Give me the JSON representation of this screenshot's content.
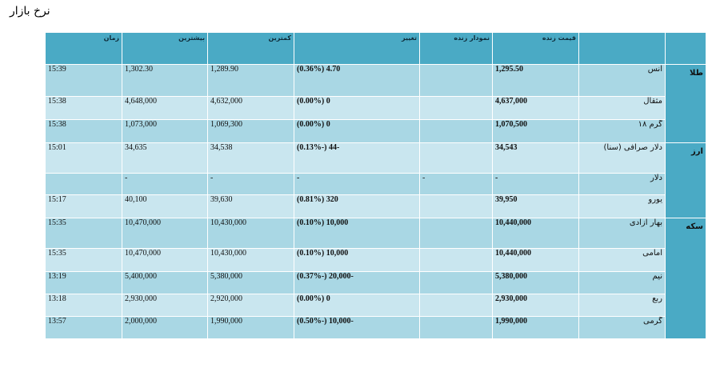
{
  "page_title": "نرخ بازار",
  "headers": {
    "category": "",
    "name": "",
    "live_price": "قیمت زنده",
    "live_chart": "نمودار زنده",
    "change": "تغییر",
    "low": "کمترین",
    "high": "بیشترین",
    "time": "زمان"
  },
  "categories": {
    "gold": "طلا",
    "currency": "ارز",
    "coin": "سکه"
  },
  "rows": [
    {
      "name": "انس",
      "price": "1,295.50",
      "chart": "",
      "change": "4.70 (0.36%)",
      "low": "1,289.90",
      "high": "1,302.30",
      "time": "15:39"
    },
    {
      "name": "مثقال",
      "price": "4,637,000",
      "chart": "",
      "change": "0 (0.00%)",
      "low": "4,632,000",
      "high": "4,648,000",
      "time": "15:38"
    },
    {
      "name": "گرم ۱۸",
      "price": "1,070,500",
      "chart": "",
      "change": "0 (0.00%)",
      "low": "1,069,300",
      "high": "1,073,000",
      "time": "15:38"
    },
    {
      "name": "دلار صرافی (سنا)",
      "price": "34,543",
      "chart": "",
      "change": "-44 (-0.13%)",
      "low": "34,538",
      "high": "34,635",
      "time": "15:01"
    },
    {
      "name": "دلار",
      "price": "-",
      "chart": "-",
      "change": "-",
      "low": "-",
      "high": "-",
      "time": ""
    },
    {
      "name": "یورو",
      "price": "39,950",
      "chart": "",
      "change": "320 (0.81%)",
      "low": "39,630",
      "high": "40,100",
      "time": "15:17"
    },
    {
      "name": "بهار آزادی",
      "price": "10,440,000",
      "chart": "",
      "change": "10,000 (0.10%)",
      "low": "10,430,000",
      "high": "10,470,000",
      "time": "15:35"
    },
    {
      "name": "امامی",
      "price": "10,440,000",
      "chart": "",
      "change": "10,000 (0.10%)",
      "low": "10,430,000",
      "high": "10,470,000",
      "time": "15:35"
    },
    {
      "name": "نیم",
      "price": "5,380,000",
      "chart": "",
      "change": "-20,000 (-0.37%)",
      "low": "5,380,000",
      "high": "5,400,000",
      "time": "13:19"
    },
    {
      "name": "ربع",
      "price": "2,930,000",
      "chart": "",
      "change": "0 (0.00%)",
      "low": "2,920,000",
      "high": "2,930,000",
      "time": "13:18"
    },
    {
      "name": "گرمی",
      "price": "1,990,000",
      "chart": "",
      "change": "-10,000 (-0.50%)",
      "low": "1,990,000",
      "high": "2,000,000",
      "time": "13:57"
    }
  ]
}
